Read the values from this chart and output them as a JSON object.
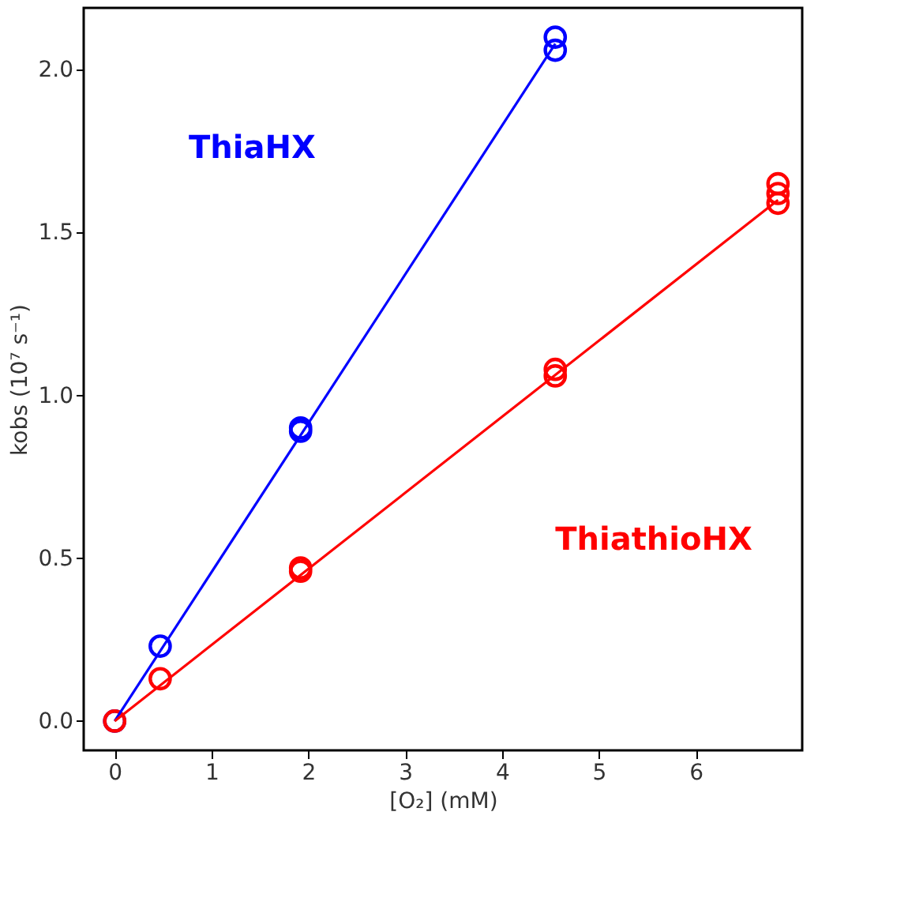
{
  "chart_data": {
    "type": "scatter",
    "xlabel": "[O₂]  (mM)",
    "ylabel": "kobs  (10⁷ s⁻¹)",
    "xlim": [
      -0.32,
      7.1
    ],
    "ylim": [
      -0.09,
      2.19
    ],
    "xticks": [
      0,
      1,
      2,
      3,
      4,
      5,
      6
    ],
    "yticks": [
      {
        "value": 0,
        "label": "0.0"
      },
      0.5,
      {
        "value": 1,
        "label": "1.0"
      },
      1.5,
      {
        "value": 2,
        "label": "2.0"
      }
    ],
    "marker": "circle",
    "series": [
      {
        "name": "ThiaHX",
        "color": "#0000ff",
        "x": [
          0,
          0.47,
          1.92,
          1.92,
          4.55,
          4.55
        ],
        "values": [
          0,
          0.23,
          0.89,
          0.9,
          2.06,
          2.1
        ]
      },
      {
        "name": "ThiathioHX",
        "color": "#ff0000",
        "x": [
          0,
          0.47,
          1.92,
          1.92,
          4.55,
          4.55,
          6.85,
          6.85,
          6.85
        ],
        "values": [
          0,
          0.13,
          0.46,
          0.47,
          1.06,
          1.08,
          1.59,
          1.62,
          1.65
        ]
      },
      {
        "color": "#0000ff",
        "type": "line",
        "marker": "none",
        "x": [
          0,
          4.55
        ],
        "values": [
          0,
          2.08
        ],
        "line_style": "solid"
      },
      {
        "color": "#ff0000",
        "type": "line",
        "marker": "none",
        "x": [
          0,
          6.85
        ],
        "values": [
          0,
          1.6
        ],
        "line_style": "solid"
      }
    ]
  }
}
